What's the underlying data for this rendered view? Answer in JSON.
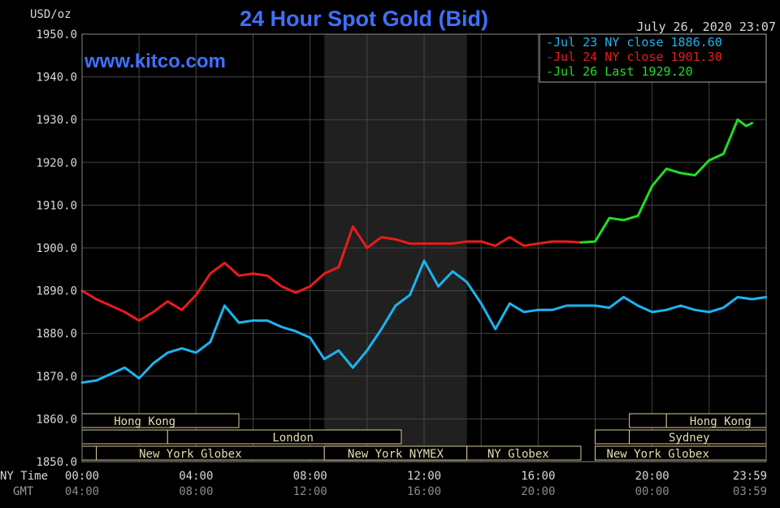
{
  "header": {
    "unit": "USD/oz",
    "title": "24 Hour Spot Gold (Bid)",
    "timestamp": "July 26, 2020 23:07",
    "watermark": "www.kitco.com"
  },
  "legend": [
    {
      "label": "Jul 23 NY close 1886.60",
      "color": "#1cb4f0"
    },
    {
      "label": "Jul 24 NY close 1901.30",
      "color": "#e81c1c"
    },
    {
      "label": "Jul 26 Last 1929.20",
      "color": "#22dd22"
    }
  ],
  "sessions": [
    {
      "label": "Hong Kong"
    },
    {
      "label": "London"
    },
    {
      "label": "New York Globex"
    },
    {
      "label": "New York NYMEX"
    },
    {
      "label": "NY Globex"
    },
    {
      "label": "Hong Kong"
    },
    {
      "label": "Sydney"
    },
    {
      "label": "New York Globex"
    }
  ],
  "x_axis": {
    "row1_title": "NY Time",
    "row2_title": "GMT",
    "ny_ticks": [
      "00:00",
      "04:00",
      "08:00",
      "12:00",
      "16:00",
      "20:00",
      "23:59"
    ],
    "gmt_ticks": [
      "04:00",
      "08:00",
      "12:00",
      "16:00",
      "20:00",
      "00:00",
      "03:59"
    ]
  },
  "chart_data": {
    "type": "line",
    "title": "24 Hour Spot Gold (Bid)",
    "ylabel": "USD/oz",
    "xlabel": "NY Time",
    "ylim": [
      1850,
      1950
    ],
    "xlim": [
      0,
      24
    ],
    "y_ticks": [
      "1950.0",
      "1940.0",
      "1930.0",
      "1920.0",
      "1910.0",
      "1900.0",
      "1890.0",
      "1880.0",
      "1870.0",
      "1860.0",
      "1850.0"
    ],
    "grid": true,
    "legend_position": "top-right",
    "series": [
      {
        "name": "Jul 23 NY close 1886.60",
        "color": "#1cb4f0",
        "points": [
          [
            0,
            1868.5
          ],
          [
            0.5,
            1869
          ],
          [
            1,
            1870.5
          ],
          [
            1.5,
            1872
          ],
          [
            2,
            1869.5
          ],
          [
            2.5,
            1873
          ],
          [
            3,
            1875.5
          ],
          [
            3.5,
            1876.5
          ],
          [
            4,
            1875.5
          ],
          [
            4.5,
            1878
          ],
          [
            5,
            1886.5
          ],
          [
            5.5,
            1882.5
          ],
          [
            6,
            1883
          ],
          [
            6.5,
            1883
          ],
          [
            7,
            1881.5
          ],
          [
            7.5,
            1880.5
          ],
          [
            8,
            1879
          ],
          [
            8.5,
            1874
          ],
          [
            9,
            1876
          ],
          [
            9.5,
            1872
          ],
          [
            10,
            1876
          ],
          [
            10.5,
            1881
          ],
          [
            11,
            1886.5
          ],
          [
            11.5,
            1889
          ],
          [
            12,
            1897
          ],
          [
            12.5,
            1891
          ],
          [
            13,
            1894.5
          ],
          [
            13.5,
            1892
          ],
          [
            14,
            1887
          ],
          [
            14.5,
            1881
          ],
          [
            15,
            1887
          ],
          [
            15.5,
            1885
          ],
          [
            16,
            1885.5
          ],
          [
            16.5,
            1885.5
          ],
          [
            17,
            1886.5
          ],
          [
            17.5,
            1886.5
          ],
          [
            18,
            1886.5
          ],
          [
            18.5,
            1886
          ],
          [
            19,
            1888.5
          ],
          [
            19.5,
            1886.5
          ],
          [
            20,
            1885
          ],
          [
            20.5,
            1885.5
          ],
          [
            21,
            1886.5
          ],
          [
            21.5,
            1885.5
          ],
          [
            22,
            1885
          ],
          [
            22.5,
            1886
          ],
          [
            23,
            1888.5
          ],
          [
            23.5,
            1888
          ],
          [
            24,
            1888.5
          ]
        ]
      },
      {
        "name": "Jul 24 NY close 1901.30",
        "color": "#e81c1c",
        "points": [
          [
            0,
            1890
          ],
          [
            0.5,
            1888
          ],
          [
            1,
            1886.5
          ],
          [
            1.5,
            1885
          ],
          [
            2,
            1883
          ],
          [
            2.5,
            1885
          ],
          [
            3,
            1887.5
          ],
          [
            3.5,
            1885.5
          ],
          [
            4,
            1889
          ],
          [
            4.5,
            1894
          ],
          [
            5,
            1896.5
          ],
          [
            5.5,
            1893.5
          ],
          [
            6,
            1894
          ],
          [
            6.5,
            1893.5
          ],
          [
            7,
            1891
          ],
          [
            7.5,
            1889.5
          ],
          [
            8,
            1891
          ],
          [
            8.5,
            1894
          ],
          [
            9,
            1895.5
          ],
          [
            9.5,
            1905
          ],
          [
            10,
            1900
          ],
          [
            10.5,
            1902.5
          ],
          [
            11,
            1902
          ],
          [
            11.5,
            1901
          ],
          [
            12,
            1901
          ],
          [
            12.5,
            1901
          ],
          [
            13,
            1901
          ],
          [
            13.5,
            1901.5
          ],
          [
            14,
            1901.5
          ],
          [
            14.5,
            1900.5
          ],
          [
            15,
            1902.5
          ],
          [
            15.5,
            1900.5
          ],
          [
            16,
            1901
          ],
          [
            16.5,
            1901.5
          ],
          [
            17,
            1901.5
          ],
          [
            17.5,
            1901.3
          ]
        ]
      },
      {
        "name": "Jul 26 Last 1929.20",
        "color": "#22dd22",
        "points": [
          [
            17.5,
            1901.3
          ],
          [
            18,
            1901.5
          ],
          [
            18.5,
            1907
          ],
          [
            19,
            1906.5
          ],
          [
            19.5,
            1907.5
          ],
          [
            20,
            1914.5
          ],
          [
            20.5,
            1918.5
          ],
          [
            21,
            1917.5
          ],
          [
            21.5,
            1917
          ],
          [
            22,
            1920.5
          ],
          [
            22.5,
            1922
          ],
          [
            23,
            1930
          ],
          [
            23.3,
            1928.5
          ],
          [
            23.5,
            1929.2
          ]
        ]
      }
    ]
  }
}
